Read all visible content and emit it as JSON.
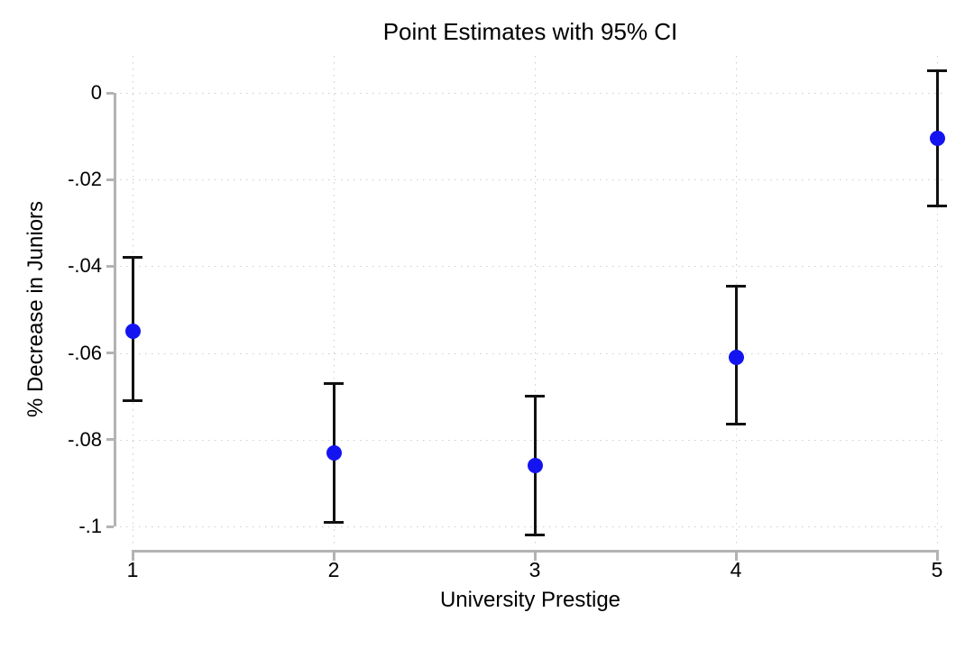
{
  "chart_data": {
    "type": "scatter",
    "title": "Point Estimates with 95% CI",
    "xlabel": "University Prestige",
    "ylabel": "% Decrease in Juniors",
    "categories": [
      1,
      2,
      3,
      4,
      5
    ],
    "x_tick_labels": [
      "1",
      "2",
      "3",
      "4",
      "5"
    ],
    "y_ticks": {
      "values": [
        0,
        -0.02,
        -0.04,
        -0.06,
        -0.08,
        -0.1
      ],
      "labels": [
        "0",
        "-.02",
        "-.04",
        "-.06",
        "-.08",
        "-.1"
      ]
    },
    "series": [
      {
        "name": "point_estimate_with_95ci",
        "estimates": [
          -0.055,
          -0.083,
          -0.086,
          -0.061,
          -0.0105
        ],
        "ci_low": [
          -0.071,
          -0.099,
          -0.102,
          -0.0765,
          -0.026
        ],
        "ci_high": [
          -0.038,
          -0.067,
          -0.07,
          -0.0445,
          0.005
        ]
      }
    ],
    "xlim": [
      0.92,
      5.04
    ],
    "ylim": [
      -0.105,
      0.009
    ],
    "grid": true,
    "legend": "none",
    "marker_color": "#1414f0",
    "errorbar_color": "#111111",
    "axis_color": "#b3b3b3",
    "grid_color": "#cdcdcd"
  }
}
